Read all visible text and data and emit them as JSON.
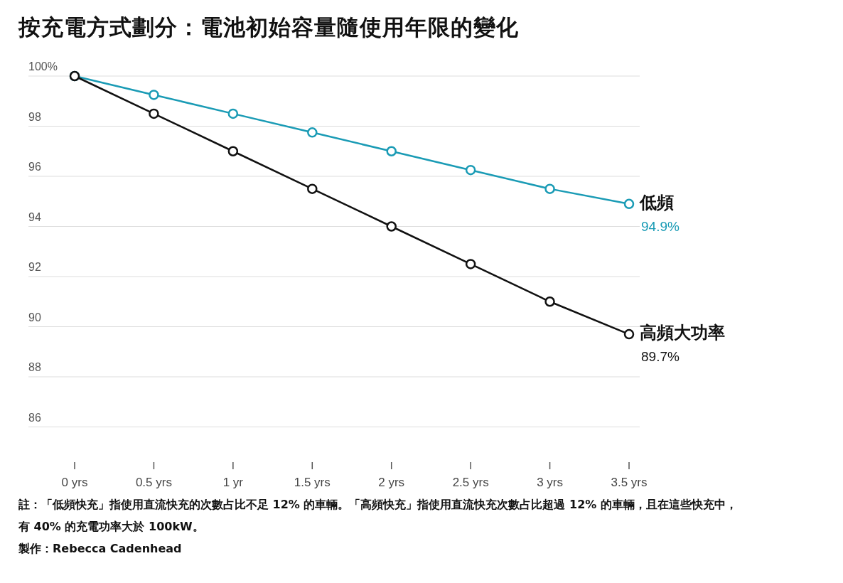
{
  "chart_data": {
    "type": "line",
    "title": "按充電方式劃分：電池初始容量隨使用年限的變化",
    "categories": [
      "0 yrs",
      "0.5 yrs",
      "1 yr",
      "1.5 yrs",
      "2 yrs",
      "2.5 yrs",
      "3 yrs",
      "3.5 yrs"
    ],
    "series": [
      {
        "name": "低頻",
        "color": "#1a9bb5",
        "values": [
          100,
          99.25,
          98.5,
          97.75,
          97,
          96.25,
          95.5,
          94.9
        ],
        "value_labels": [
          null,
          null,
          null,
          null,
          null,
          null,
          null,
          "94.9%"
        ]
      },
      {
        "name": "高頻大功率",
        "color": "#111111",
        "values": [
          100,
          98.5,
          97,
          95.5,
          94,
          92.5,
          91,
          89.7
        ],
        "value_labels": [
          null,
          null,
          null,
          null,
          null,
          null,
          null,
          "89.7%"
        ]
      }
    ],
    "ylim": [
      86,
      100
    ],
    "yticks": [
      86,
      88,
      90,
      92,
      94,
      96,
      98,
      {
        "value": 100,
        "label": "100%"
      }
    ],
    "grid": "y",
    "legend": false,
    "marker": "circle",
    "line_style": "solid",
    "annotations": [
      "註：「低頻快充」指使用直流快充的次數占比不足 12% 的車輛。「高頻快充」指使用直流快充次數占比超過 12% 的車輛，且在這些快充中，有 40% 的充電功率大於 100kW。",
      "製作：Rebecca Cadenhead"
    ]
  }
}
